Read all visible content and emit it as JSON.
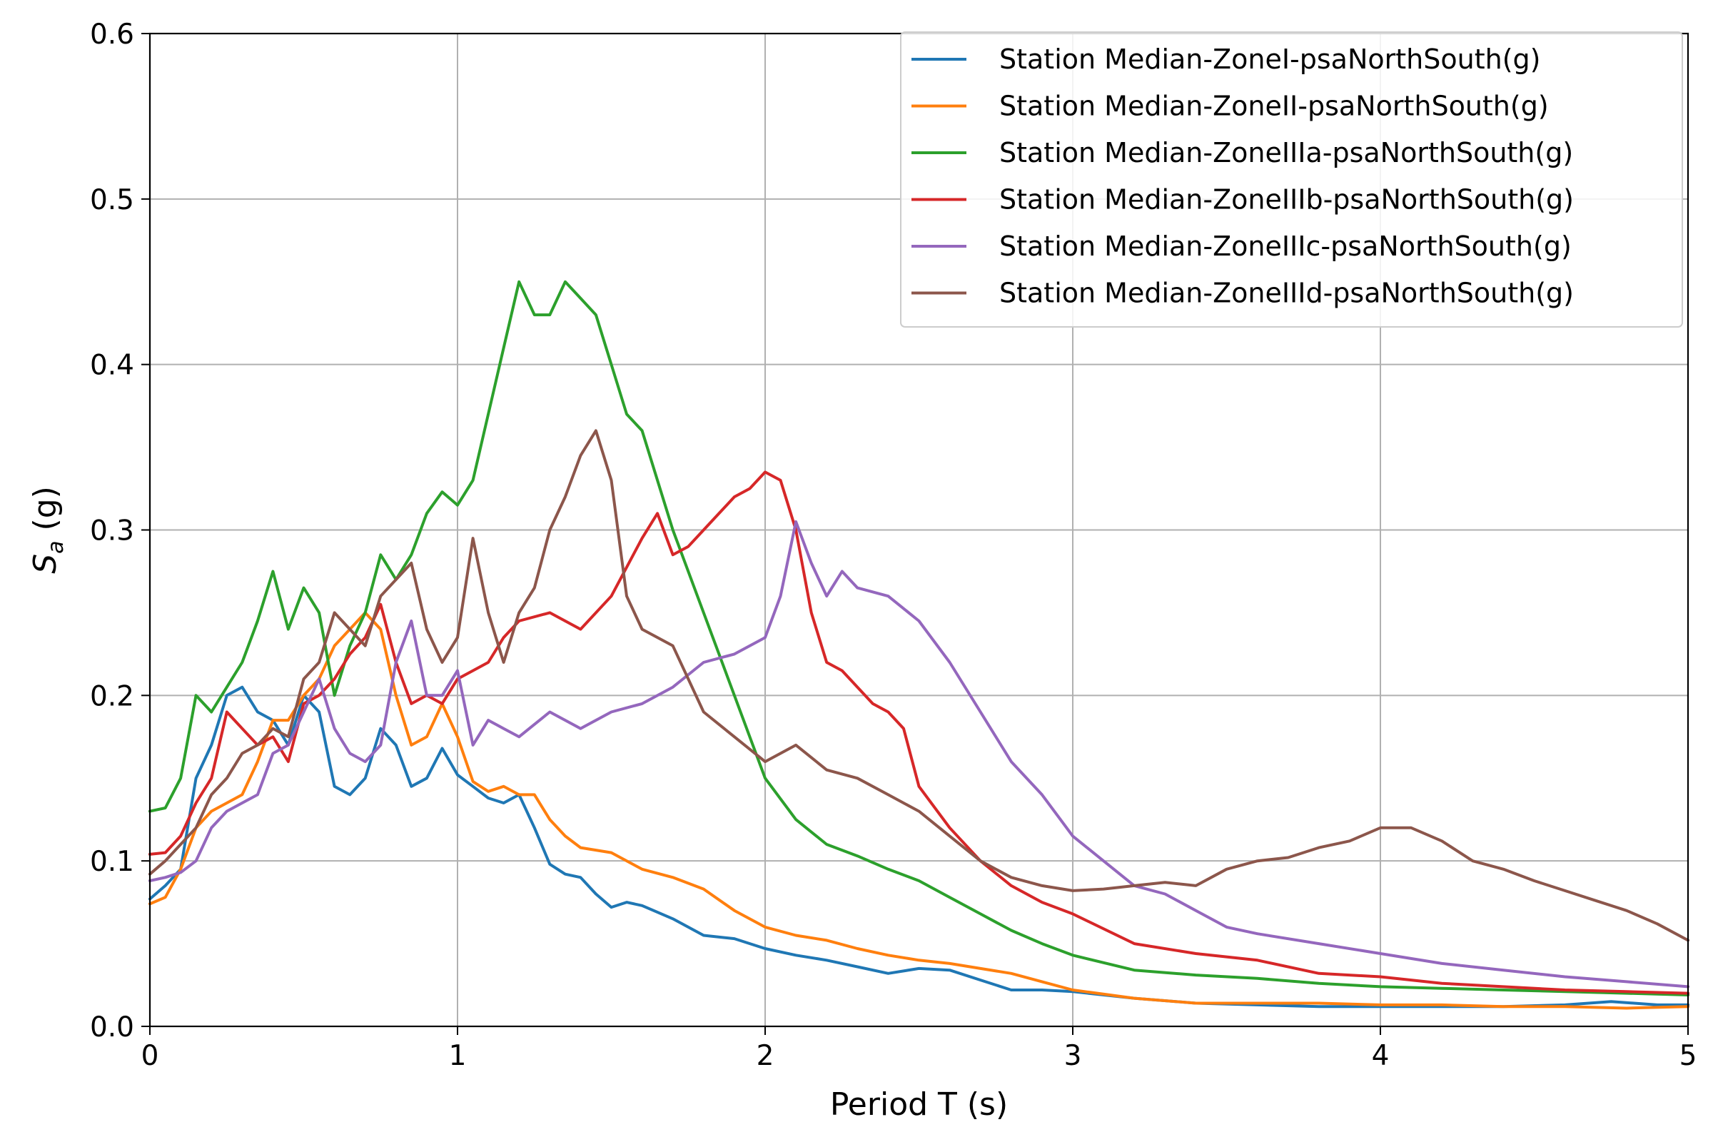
{
  "chart_data": {
    "type": "line",
    "xlabel": "Period T (s)",
    "ylabel_base": "S",
    "ylabel_sub": "a",
    "ylabel_unit": " (g)",
    "xlim": [
      0,
      5
    ],
    "ylim": [
      0,
      0.6
    ],
    "x_ticks": [
      0,
      1,
      2,
      3,
      4,
      5
    ],
    "x_tick_labels": [
      "0",
      "1",
      "2",
      "3",
      "4",
      "5"
    ],
    "y_ticks": [
      0,
      0.1,
      0.2,
      0.3,
      0.4,
      0.5,
      0.6
    ],
    "y_tick_labels": [
      "0.0",
      "0.1",
      "0.2",
      "0.3",
      "0.4",
      "0.5",
      "0.6"
    ],
    "grid": true,
    "legend_position": "top-right",
    "series": [
      {
        "name": "Station Median-ZoneI-psaNorthSouth(g)",
        "color": "#1f77b4",
        "x": [
          0.0,
          0.05,
          0.1,
          0.15,
          0.2,
          0.25,
          0.3,
          0.35,
          0.4,
          0.45,
          0.5,
          0.55,
          0.6,
          0.65,
          0.7,
          0.75,
          0.8,
          0.85,
          0.9,
          0.95,
          1.0,
          1.05,
          1.1,
          1.15,
          1.2,
          1.25,
          1.3,
          1.35,
          1.4,
          1.45,
          1.5,
          1.55,
          1.6,
          1.7,
          1.8,
          1.9,
          2.0,
          2.1,
          2.2,
          2.3,
          2.4,
          2.5,
          2.6,
          2.7,
          2.8,
          2.9,
          3.0,
          3.2,
          3.4,
          3.6,
          3.8,
          4.0,
          4.2,
          4.4,
          4.6,
          4.75,
          4.9,
          5.0
        ],
        "y": [
          0.077,
          0.085,
          0.095,
          0.15,
          0.17,
          0.2,
          0.205,
          0.19,
          0.185,
          0.17,
          0.2,
          0.19,
          0.145,
          0.14,
          0.15,
          0.18,
          0.17,
          0.145,
          0.15,
          0.168,
          0.152,
          0.145,
          0.138,
          0.135,
          0.14,
          0.12,
          0.098,
          0.092,
          0.09,
          0.08,
          0.072,
          0.075,
          0.073,
          0.065,
          0.055,
          0.053,
          0.047,
          0.043,
          0.04,
          0.036,
          0.032,
          0.035,
          0.034,
          0.028,
          0.022,
          0.022,
          0.021,
          0.017,
          0.014,
          0.013,
          0.012,
          0.012,
          0.012,
          0.012,
          0.013,
          0.015,
          0.013,
          0.013
        ]
      },
      {
        "name": "Station Median-ZoneII-psaNorthSouth(g)",
        "color": "#ff7f0e",
        "x": [
          0.0,
          0.05,
          0.1,
          0.15,
          0.2,
          0.25,
          0.3,
          0.35,
          0.4,
          0.45,
          0.5,
          0.55,
          0.6,
          0.65,
          0.7,
          0.75,
          0.8,
          0.85,
          0.9,
          0.95,
          1.0,
          1.05,
          1.1,
          1.15,
          1.2,
          1.25,
          1.3,
          1.35,
          1.4,
          1.5,
          1.6,
          1.7,
          1.8,
          1.9,
          2.0,
          2.1,
          2.2,
          2.3,
          2.4,
          2.5,
          2.6,
          2.7,
          2.8,
          2.9,
          3.0,
          3.2,
          3.4,
          3.6,
          3.8,
          4.0,
          4.2,
          4.4,
          4.6,
          4.8,
          5.0
        ],
        "y": [
          0.074,
          0.078,
          0.095,
          0.12,
          0.13,
          0.135,
          0.14,
          0.16,
          0.185,
          0.185,
          0.2,
          0.21,
          0.23,
          0.24,
          0.25,
          0.24,
          0.2,
          0.17,
          0.175,
          0.195,
          0.175,
          0.148,
          0.142,
          0.145,
          0.14,
          0.14,
          0.125,
          0.115,
          0.108,
          0.105,
          0.095,
          0.09,
          0.083,
          0.07,
          0.06,
          0.055,
          0.052,
          0.047,
          0.043,
          0.04,
          0.038,
          0.035,
          0.032,
          0.027,
          0.022,
          0.017,
          0.014,
          0.014,
          0.014,
          0.013,
          0.013,
          0.012,
          0.012,
          0.011,
          0.012
        ]
      },
      {
        "name": "Station Median-ZoneIIIa-psaNorthSouth(g)",
        "color": "#2ca02c",
        "x": [
          0.0,
          0.05,
          0.1,
          0.15,
          0.2,
          0.25,
          0.3,
          0.35,
          0.4,
          0.45,
          0.5,
          0.55,
          0.6,
          0.65,
          0.7,
          0.75,
          0.8,
          0.85,
          0.9,
          0.95,
          1.0,
          1.05,
          1.1,
          1.15,
          1.2,
          1.25,
          1.3,
          1.35,
          1.4,
          1.45,
          1.5,
          1.55,
          1.6,
          1.65,
          1.7,
          1.8,
          1.9,
          2.0,
          2.1,
          2.2,
          2.3,
          2.4,
          2.5,
          2.6,
          2.7,
          2.8,
          2.9,
          3.0,
          3.2,
          3.4,
          3.6,
          3.8,
          4.0,
          4.2,
          4.4,
          4.6,
          4.8,
          5.0
        ],
        "y": [
          0.13,
          0.132,
          0.15,
          0.2,
          0.19,
          0.205,
          0.22,
          0.245,
          0.275,
          0.24,
          0.265,
          0.25,
          0.2,
          0.23,
          0.25,
          0.285,
          0.27,
          0.285,
          0.31,
          0.323,
          0.315,
          0.33,
          0.37,
          0.41,
          0.45,
          0.43,
          0.43,
          0.45,
          0.44,
          0.43,
          0.4,
          0.37,
          0.36,
          0.33,
          0.3,
          0.25,
          0.2,
          0.15,
          0.125,
          0.11,
          0.103,
          0.095,
          0.088,
          0.078,
          0.068,
          0.058,
          0.05,
          0.043,
          0.034,
          0.031,
          0.029,
          0.026,
          0.024,
          0.023,
          0.022,
          0.021,
          0.02,
          0.019
        ]
      },
      {
        "name": "Station Median-ZoneIIIb-psaNorthSouth(g)",
        "color": "#d62728",
        "x": [
          0.0,
          0.05,
          0.1,
          0.15,
          0.2,
          0.25,
          0.3,
          0.35,
          0.4,
          0.45,
          0.5,
          0.55,
          0.6,
          0.65,
          0.7,
          0.75,
          0.8,
          0.85,
          0.9,
          0.95,
          1.0,
          1.05,
          1.1,
          1.15,
          1.2,
          1.3,
          1.4,
          1.5,
          1.6,
          1.65,
          1.7,
          1.75,
          1.8,
          1.85,
          1.9,
          1.95,
          2.0,
          2.05,
          2.1,
          2.15,
          2.2,
          2.25,
          2.3,
          2.35,
          2.4,
          2.45,
          2.5,
          2.6,
          2.7,
          2.8,
          2.9,
          3.0,
          3.2,
          3.4,
          3.6,
          3.8,
          4.0,
          4.2,
          4.4,
          4.6,
          4.8,
          5.0
        ],
        "y": [
          0.104,
          0.105,
          0.115,
          0.135,
          0.15,
          0.19,
          0.18,
          0.17,
          0.175,
          0.16,
          0.195,
          0.2,
          0.21,
          0.225,
          0.235,
          0.255,
          0.22,
          0.195,
          0.2,
          0.195,
          0.21,
          0.215,
          0.22,
          0.235,
          0.245,
          0.25,
          0.24,
          0.26,
          0.295,
          0.31,
          0.285,
          0.29,
          0.3,
          0.31,
          0.32,
          0.325,
          0.335,
          0.33,
          0.3,
          0.25,
          0.22,
          0.215,
          0.205,
          0.195,
          0.19,
          0.18,
          0.145,
          0.12,
          0.1,
          0.085,
          0.075,
          0.068,
          0.05,
          0.044,
          0.04,
          0.032,
          0.03,
          0.026,
          0.024,
          0.022,
          0.021,
          0.02
        ]
      },
      {
        "name": "Station Median-ZoneIIIc-psaNorthSouth(g)",
        "color": "#9467bd",
        "x": [
          0.0,
          0.05,
          0.1,
          0.15,
          0.2,
          0.25,
          0.3,
          0.35,
          0.4,
          0.45,
          0.5,
          0.55,
          0.6,
          0.65,
          0.7,
          0.75,
          0.8,
          0.85,
          0.9,
          0.95,
          1.0,
          1.05,
          1.1,
          1.15,
          1.2,
          1.3,
          1.4,
          1.5,
          1.6,
          1.7,
          1.8,
          1.9,
          2.0,
          2.05,
          2.1,
          2.15,
          2.2,
          2.25,
          2.3,
          2.4,
          2.5,
          2.6,
          2.7,
          2.8,
          2.9,
          3.0,
          3.1,
          3.2,
          3.3,
          3.4,
          3.5,
          3.6,
          3.8,
          4.0,
          4.2,
          4.4,
          4.6,
          4.8,
          5.0
        ],
        "y": [
          0.088,
          0.09,
          0.093,
          0.1,
          0.12,
          0.13,
          0.135,
          0.14,
          0.165,
          0.17,
          0.19,
          0.21,
          0.18,
          0.165,
          0.16,
          0.17,
          0.22,
          0.245,
          0.2,
          0.2,
          0.215,
          0.17,
          0.185,
          0.18,
          0.175,
          0.19,
          0.18,
          0.19,
          0.195,
          0.205,
          0.22,
          0.225,
          0.235,
          0.26,
          0.305,
          0.28,
          0.26,
          0.275,
          0.265,
          0.26,
          0.245,
          0.22,
          0.19,
          0.16,
          0.14,
          0.115,
          0.1,
          0.085,
          0.08,
          0.07,
          0.06,
          0.056,
          0.05,
          0.044,
          0.038,
          0.034,
          0.03,
          0.027,
          0.024
        ]
      },
      {
        "name": "Station Median-ZoneIIId-psaNorthSouth(g)",
        "color": "#8c564b",
        "x": [
          0.0,
          0.05,
          0.1,
          0.15,
          0.2,
          0.25,
          0.3,
          0.35,
          0.4,
          0.45,
          0.5,
          0.55,
          0.6,
          0.65,
          0.7,
          0.75,
          0.8,
          0.85,
          0.9,
          0.95,
          1.0,
          1.05,
          1.1,
          1.15,
          1.2,
          1.25,
          1.3,
          1.35,
          1.4,
          1.45,
          1.5,
          1.55,
          1.6,
          1.7,
          1.8,
          1.9,
          2.0,
          2.1,
          2.2,
          2.3,
          2.4,
          2.5,
          2.6,
          2.7,
          2.8,
          2.9,
          3.0,
          3.1,
          3.2,
          3.3,
          3.4,
          3.5,
          3.6,
          3.7,
          3.8,
          3.9,
          4.0,
          4.1,
          4.2,
          4.3,
          4.4,
          4.5,
          4.6,
          4.7,
          4.8,
          4.9,
          5.0
        ],
        "y": [
          0.092,
          0.1,
          0.11,
          0.12,
          0.14,
          0.15,
          0.165,
          0.17,
          0.18,
          0.175,
          0.21,
          0.22,
          0.25,
          0.24,
          0.23,
          0.26,
          0.27,
          0.28,
          0.24,
          0.22,
          0.235,
          0.295,
          0.25,
          0.22,
          0.25,
          0.265,
          0.3,
          0.32,
          0.345,
          0.36,
          0.33,
          0.26,
          0.24,
          0.23,
          0.19,
          0.175,
          0.16,
          0.17,
          0.155,
          0.15,
          0.14,
          0.13,
          0.115,
          0.1,
          0.09,
          0.085,
          0.082,
          0.083,
          0.085,
          0.087,
          0.085,
          0.095,
          0.1,
          0.102,
          0.108,
          0.112,
          0.12,
          0.12,
          0.112,
          0.1,
          0.095,
          0.088,
          0.082,
          0.076,
          0.07,
          0.062,
          0.052
        ]
      }
    ]
  }
}
